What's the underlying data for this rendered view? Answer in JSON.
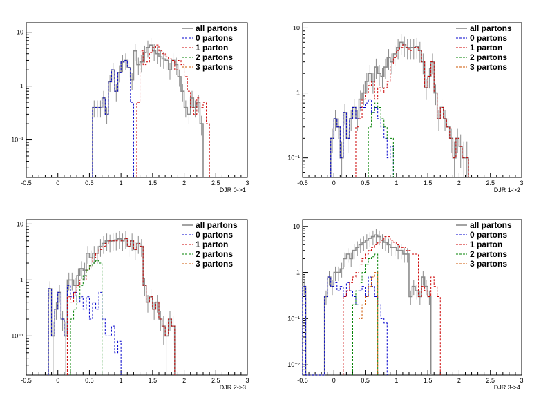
{
  "figure": {
    "legend_position": "top-right",
    "legend_entries": [
      "all partons",
      "0 partons",
      "1 parton",
      "2 partons",
      "3 partons"
    ],
    "series_colors": {
      "all partons": "#8c8c8c",
      "0 partons": "#0000cc",
      "1 parton": "#cc0000",
      "2 partons": "#008000",
      "3 partons": "#cc5500"
    }
  },
  "chart_data": [
    {
      "type": "histogram",
      "xlabel": "DJR 0->1",
      "xlim": [
        -0.5,
        3
      ],
      "ylim": [
        0.02,
        15
      ],
      "log_y": true,
      "x_ticks": [
        "-0.5",
        "0",
        "0.5",
        "1",
        "1.5",
        "2",
        "2.5",
        "3"
      ],
      "y_ticks": [
        {
          "v": 0.1,
          "label": "10⁻¹"
        },
        {
          "v": 1,
          "label": "1"
        },
        {
          "v": 10,
          "label": "10"
        }
      ],
      "bin_width": 0.05,
      "series": [
        {
          "name": "all partons",
          "x_start": 0.55,
          "values": [
            0.4,
            0.4,
            0.4,
            0.6,
            0.3,
            1.2,
            2.0,
            0.8,
            1.8,
            2.8,
            3.0,
            2.2,
            1.3,
            4.5,
            2.5,
            2.8,
            4.2,
            5.2,
            5.8,
            4.5,
            4.0,
            3.5,
            3.2,
            3.0,
            2.0,
            3.0,
            2.5,
            1.5,
            0.8,
            0.4,
            0.3,
            0.6,
            0.4,
            0.5,
            0.2
          ]
        },
        {
          "name": "0 partons",
          "x_start": 0.55,
          "values": [
            0.4,
            0.4,
            0.4,
            0.6,
            0.3,
            1.2,
            2.0,
            0.8,
            1.8,
            2.8,
            3.0,
            2.2,
            0.5
          ]
        },
        {
          "name": "1 parton",
          "x_start": 1.25,
          "values": [
            0.5,
            4.5,
            2.5,
            2.8,
            4.2,
            5.2,
            5.8,
            4.5,
            4.0,
            3.5,
            3.2,
            3.0,
            2.0,
            3.0,
            2.5,
            1.5,
            0.8,
            0.4,
            0.3,
            0.6,
            0.4,
            0.5,
            0.2
          ]
        },
        {
          "name": "2 partons",
          "x_start": 0,
          "values": []
        },
        {
          "name": "3 partons",
          "x_start": 0,
          "values": []
        }
      ]
    },
    {
      "type": "histogram",
      "xlabel": "DJR 1->2",
      "xlim": [
        -0.5,
        3
      ],
      "ylim": [
        0.05,
        12
      ],
      "log_y": true,
      "x_ticks": [
        "-0.5",
        "0",
        "0.5",
        "1",
        "1.5",
        "2",
        "2.5",
        "3"
      ],
      "y_ticks": [
        {
          "v": 0.1,
          "label": "10⁻¹"
        },
        {
          "v": 1,
          "label": "1"
        },
        {
          "v": 10,
          "label": "10"
        }
      ],
      "bin_width": 0.05,
      "series": [
        {
          "name": "all partons",
          "x_start": -0.05,
          "values": [
            0.2,
            0.4,
            0.3,
            0.1,
            0.5,
            0.2,
            0.4,
            0.6,
            0.4,
            0.8,
            1.0,
            1.5,
            2.0,
            1.5,
            2.5,
            2.0,
            1.8,
            2.5,
            3.5,
            3.0,
            4.0,
            5.0,
            6.0,
            5.5,
            5.0,
            5.0,
            5.0,
            5.2,
            4.5,
            3.0,
            1.2,
            1.8,
            3.0,
            1.0,
            0.4,
            0.6,
            0.4,
            0.3,
            0.2,
            0.1,
            0.2,
            0.15,
            0.1,
            0.1
          ]
        },
        {
          "name": "0 partons",
          "x_start": -0.05,
          "values": [
            0.2,
            0.4,
            0.3,
            0.1,
            0.5,
            0.2,
            0.4,
            0.6,
            0.4,
            0.6,
            0.6,
            0.7,
            0.8,
            0.5,
            0.6,
            0.4,
            0.3,
            0.2,
            0.1,
            0.15
          ]
        },
        {
          "name": "1 parton",
          "x_start": 0.35,
          "values": [
            0.3,
            0.4,
            0.8,
            1.0,
            1.3,
            1.5,
            0.8,
            1.2,
            1.0,
            1.2,
            1.5,
            2.8,
            3.5,
            4.5,
            5.0,
            5.5,
            5.0,
            4.5,
            5.0,
            5.0,
            4.5,
            3.0,
            1.2,
            1.8,
            3.0,
            1.0,
            0.4,
            0.6,
            0.4,
            0.3,
            0.2,
            0.1,
            0.2,
            0.15,
            0.1,
            0.1
          ]
        },
        {
          "name": "2 partons",
          "x_start": 0.55,
          "values": [
            0.3,
            0.5,
            0.7,
            0.6,
            0.4,
            0.3,
            0.2,
            0.2
          ]
        },
        {
          "name": "3 partons",
          "x_start": 0,
          "values": []
        }
      ]
    },
    {
      "type": "histogram",
      "xlabel": "DJR 2->3",
      "xlim": [
        -0.5,
        3
      ],
      "ylim": [
        0.02,
        12
      ],
      "log_y": true,
      "x_ticks": [
        "-0.5",
        "0",
        "0.5",
        "1",
        "1.5",
        "2",
        "2.5",
        "3"
      ],
      "y_ticks": [
        {
          "v": 0.1,
          "label": "10⁻¹"
        },
        {
          "v": 1,
          "label": "1"
        },
        {
          "v": 10,
          "label": "10"
        }
      ],
      "bin_width": 0.05,
      "series": [
        {
          "name": "all partons",
          "x_start": -0.15,
          "values": [
            0.7,
            0.1,
            0.3,
            0.6,
            0.2,
            0.1,
            1.0,
            1.0,
            0.8,
            1.2,
            1.6,
            1.5,
            3.0,
            2.5,
            3.0,
            3.0,
            4.0,
            4.5,
            5.0,
            4.8,
            5.0,
            5.2,
            5.5,
            5.0,
            5.5,
            4.0,
            5.0,
            3.5,
            4.5,
            4.0,
            0.8,
            0.4,
            0.5,
            0.3,
            0.4,
            0.2,
            0.15,
            0.1,
            0.2,
            0.15
          ]
        },
        {
          "name": "0 partons",
          "x_start": -0.15,
          "values": [
            0.7,
            0.1,
            0.3,
            0.6,
            0.2,
            0.1,
            0.8,
            0.5,
            0.6,
            0.4,
            0.5,
            0.3,
            0.5,
            0.2,
            0.4,
            0.3,
            0.6,
            0.2,
            0.1,
            0.1,
            0.15,
            0.05,
            0.08
          ]
        },
        {
          "name": "1 parton",
          "x_start": 0.15,
          "values": [
            0.5,
            0.4,
            0.6,
            0.8,
            1.0,
            1.0,
            1.5,
            1.8,
            2.5,
            3.0,
            3.5,
            4.0,
            4.5,
            5.0,
            5.0,
            5.0,
            5.2,
            5.0,
            5.5,
            4.0,
            5.0,
            3.5,
            4.5,
            4.0,
            0.8,
            0.4,
            0.5,
            0.3,
            0.4,
            0.2,
            0.15,
            0.1,
            0.2,
            0.15
          ]
        },
        {
          "name": "2 partons",
          "x_start": 0.2,
          "values": [
            0.2,
            0.3,
            0.5,
            0.8,
            1.2,
            1.5,
            1.8,
            2.0,
            2.2,
            2.0
          ]
        },
        {
          "name": "3 partons",
          "x_start": 0,
          "values": []
        }
      ]
    },
    {
      "type": "histogram",
      "xlabel": "DJR 3->4",
      "xlim": [
        -0.5,
        3
      ],
      "ylim": [
        0.006,
        14
      ],
      "log_y": true,
      "x_ticks": [
        "-0.5",
        "0",
        "0.5",
        "1",
        "1.5",
        "2",
        "2.5",
        "3"
      ],
      "y_ticks": [
        {
          "v": 0.01,
          "label": "10⁻²"
        },
        {
          "v": 0.1,
          "label": "10⁻¹"
        },
        {
          "v": 1,
          "label": "1"
        },
        {
          "v": 10,
          "label": "10"
        }
      ],
      "bin_width": 0.05,
      "series": [
        {
          "name": "all partons",
          "x_start": -0.5,
          "values": [
            0.5,
            0,
            0,
            0,
            0,
            0,
            0,
            0.3,
            0.8,
            0.5,
            1.0,
            1.0,
            1.2,
            2.0,
            2.5,
            2.0,
            3.0,
            3.5,
            4.0,
            4.5,
            5.0,
            5.5,
            6.0,
            6.5,
            6.0,
            5.0,
            4.5,
            4.0,
            3.5,
            3.5,
            3.0,
            3.0,
            2.5,
            2.5,
            0.3,
            0.5,
            0.4,
            0.3,
            0.8,
            0.5,
            0.3
          ]
        },
        {
          "name": "0 partons",
          "x_start": -0.5,
          "values": [
            0.5,
            0,
            0,
            0,
            0,
            0,
            0,
            0.3,
            0.8,
            0.5,
            0.6,
            0.4,
            0.5,
            0.3,
            0.6,
            0.4,
            0.3,
            0.2,
            0.4,
            0.5,
            0.3,
            0.8,
            0.5,
            0.3,
            0.2,
            0.1,
            0.08
          ]
        },
        {
          "name": "1 parton",
          "x_start": 0.15,
          "values": [
            0.3,
            0.4,
            0.6,
            0.8,
            1.0,
            1.5,
            2.0,
            2.5,
            3.0,
            3.5,
            4.0,
            4.5,
            5.0,
            6.0,
            6.0,
            5.0,
            4.5,
            4.0,
            3.5,
            3.5,
            3.0,
            3.0,
            2.5,
            2.5,
            0.3,
            0.5,
            0.4,
            0.3,
            0.8,
            0.5,
            0.3
          ]
        },
        {
          "name": "2 partons",
          "x_start": 0.3,
          "values": [
            0.2,
            0.4,
            0.6,
            1.0,
            1.5,
            2.0,
            2.2,
            2.5
          ]
        },
        {
          "name": "3 partons",
          "x_start": 0.4,
          "values": [
            0.1,
            0.2,
            0.3,
            0.5,
            0.8,
            1.0
          ]
        }
      ]
    }
  ]
}
